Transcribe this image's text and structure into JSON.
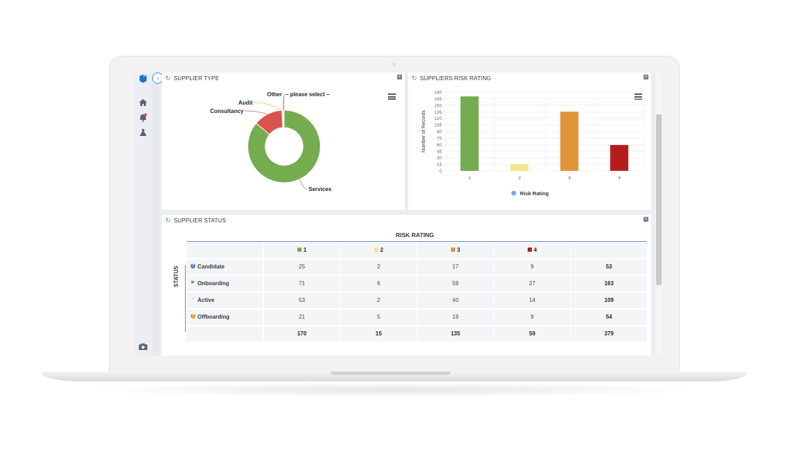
{
  "panels": {
    "supplier_type": {
      "title": "SUPPLIER TYPE"
    },
    "risk_rating": {
      "title": "SUPPLIERS RISK RATING"
    },
    "supplier_status": {
      "title": "SUPPLIER STATUS"
    }
  },
  "colors": {
    "green": "#75ac4f",
    "yellow": "#f1e68f",
    "orange": "#e09438",
    "red": "#b71c1c",
    "pie_green": "#75ac4f",
    "pie_red": "#d9534f",
    "accent": "#4a8cd8"
  },
  "icons": [
    "logo-icon",
    "home-icon",
    "bell-icon",
    "flask-icon",
    "camera-icon",
    "refresh-icon",
    "expand-icon",
    "menu-icon"
  ],
  "chart_data": [
    {
      "type": "pie",
      "title": "",
      "labels": [
        "Services",
        "Consultancy",
        "Audit",
        "Other",
        "– please select –"
      ],
      "values": [
        86,
        13,
        0.5,
        0.3,
        0.2
      ],
      "colors": [
        "#75ac4f",
        "#d9534f",
        "#f3c35c",
        "#a8a8d8",
        "#7f7fbf"
      ]
    },
    {
      "type": "bar",
      "title": "",
      "categories": [
        "1",
        "2",
        "3",
        "4"
      ],
      "values": [
        170,
        15,
        135,
        59
      ],
      "colors": [
        "#75ac4f",
        "#f1e68f",
        "#e09438",
        "#b71c1c"
      ],
      "ylabel": "Number of Records",
      "xlabel": "",
      "yticks": [
        "0",
        "15",
        "30",
        "45",
        "60",
        "75",
        "90",
        "105",
        "120",
        "135",
        "150",
        "165",
        "180"
      ],
      "ylim": [
        0,
        180
      ],
      "legend": "Risk Rating",
      "legend_color": "#7fa6e6",
      "grid": true
    },
    {
      "type": "table",
      "title": "RISK RATING",
      "row_axis": "STATUS",
      "columns": [
        "1",
        "2",
        "3",
        "4",
        ""
      ],
      "rows": [
        {
          "label": "Candidate",
          "values": [
            "25",
            "2",
            "17",
            "9"
          ],
          "total": "53"
        },
        {
          "label": "Onboarding",
          "values": [
            "71",
            "6",
            "59",
            "27"
          ],
          "total": "163"
        },
        {
          "label": "Active",
          "values": [
            "53",
            "2",
            "40",
            "14"
          ],
          "total": "109"
        },
        {
          "label": "Offboarding",
          "values": [
            "21",
            "5",
            "19",
            "9"
          ],
          "total": "54"
        }
      ],
      "totals": [
        "170",
        "15",
        "135",
        "59",
        "379"
      ]
    }
  ]
}
